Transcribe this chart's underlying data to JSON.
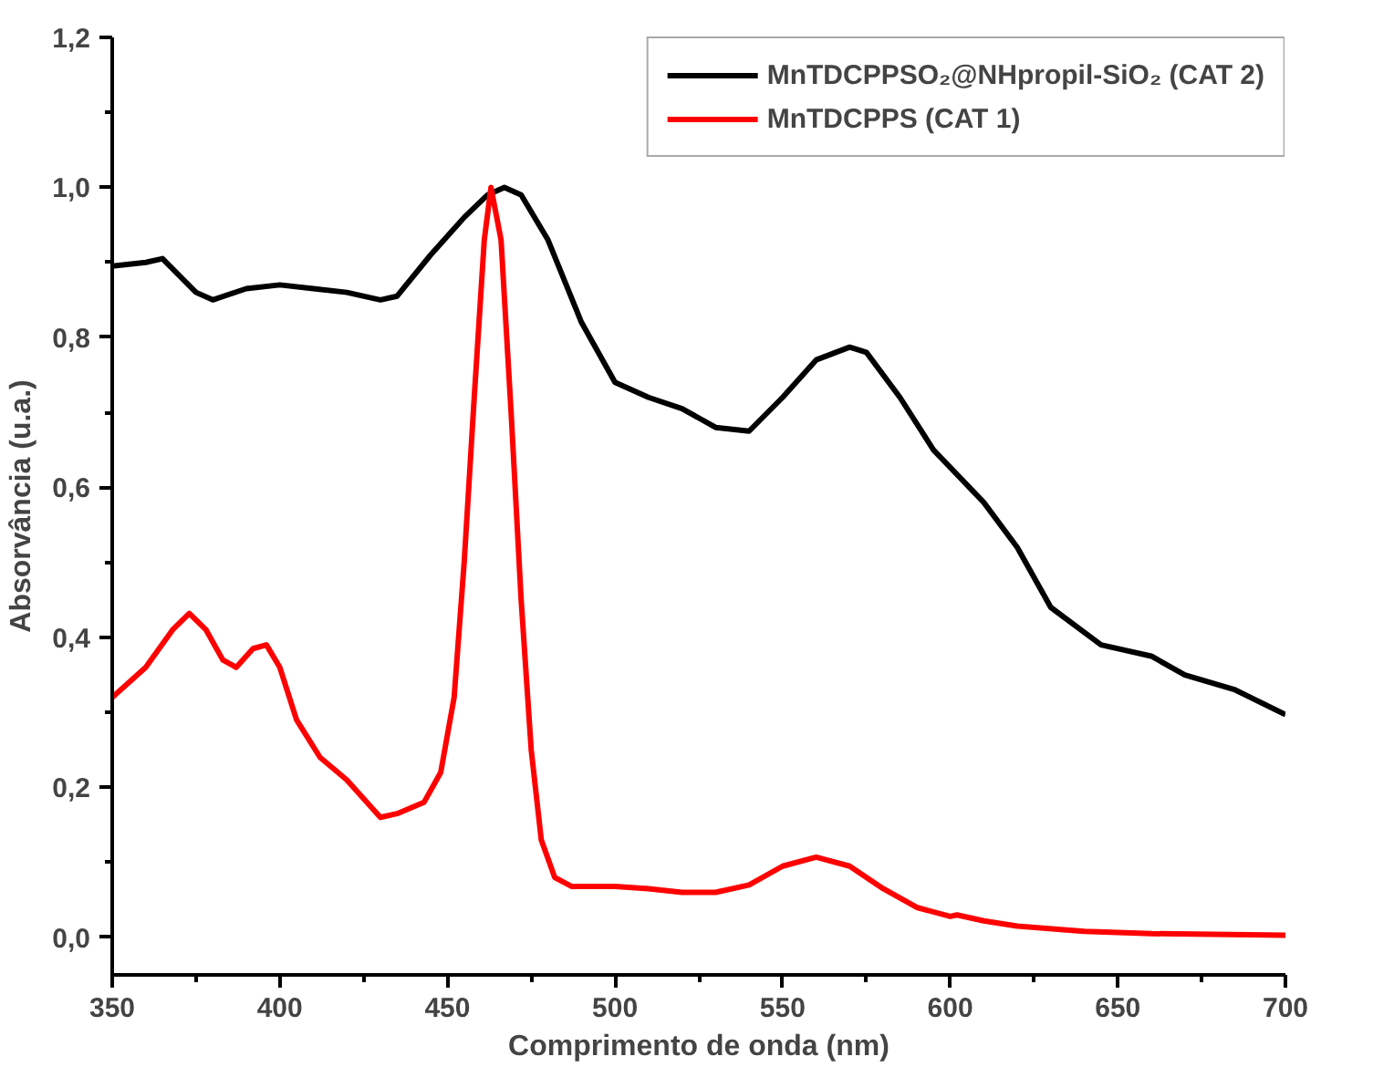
{
  "chart_data": {
    "type": "line",
    "xlabel": "Comprimento de onda (nm)",
    "ylabel": "Absorvância (u.a.)",
    "xlim": [
      350,
      700
    ],
    "ylim": [
      -0.05,
      1.2
    ],
    "xticks": [
      350,
      400,
      450,
      500,
      550,
      600,
      650,
      700
    ],
    "yticks": [
      {
        "value": 0,
        "label": "0,0"
      },
      {
        "value": 0.2,
        "label": "0,2"
      },
      {
        "value": 0.4,
        "label": "0,4"
      },
      {
        "value": 0.6,
        "label": "0,6"
      },
      {
        "value": 0.8,
        "label": "0,8"
      },
      {
        "value": 1.0,
        "label": "1,0"
      },
      {
        "value": 1.2,
        "label": "1,2"
      }
    ],
    "grid": false,
    "legend": "top right",
    "line_style": "solid",
    "marker": "none",
    "series": [
      {
        "name": "MnTDCPPSO₂@NHpropil-SiO₂ (CAT 2)",
        "color": "#000000",
        "x": [
          350,
          360,
          365,
          375,
          380,
          390,
          400,
          410,
          420,
          430,
          435,
          445,
          455,
          462,
          467,
          472,
          480,
          490,
          500,
          510,
          520,
          530,
          540,
          550,
          560,
          570,
          575,
          585,
          595,
          610,
          620,
          630,
          645,
          660,
          670,
          685,
          700
        ],
        "values": [
          0.895,
          0.9,
          0.905,
          0.86,
          0.85,
          0.865,
          0.87,
          0.865,
          0.86,
          0.85,
          0.855,
          0.91,
          0.96,
          0.99,
          1.0,
          0.99,
          0.93,
          0.82,
          0.74,
          0.72,
          0.705,
          0.68,
          0.675,
          0.72,
          0.77,
          0.787,
          0.78,
          0.72,
          0.65,
          0.58,
          0.52,
          0.44,
          0.39,
          0.375,
          0.35,
          0.33,
          0.297
        ]
      },
      {
        "name": "MnTDCPPS (CAT 1)",
        "color": "#ff0000",
        "x": [
          350,
          360,
          368,
          373,
          378,
          383,
          387,
          392,
          396,
          400,
          405,
          412,
          420,
          425,
          430,
          435,
          443,
          448,
          452,
          455,
          458,
          461,
          463,
          466,
          469,
          472,
          475,
          478,
          482,
          487,
          500,
          510,
          520,
          530,
          540,
          550,
          560,
          570,
          580,
          590,
          600,
          602,
          610,
          620,
          640,
          660,
          700
        ],
        "values": [
          0.32,
          0.36,
          0.41,
          0.432,
          0.41,
          0.37,
          0.36,
          0.385,
          0.39,
          0.36,
          0.29,
          0.24,
          0.21,
          0.185,
          0.16,
          0.165,
          0.18,
          0.22,
          0.32,
          0.5,
          0.72,
          0.93,
          1.0,
          0.93,
          0.7,
          0.45,
          0.25,
          0.13,
          0.08,
          0.068,
          0.068,
          0.065,
          0.06,
          0.06,
          0.07,
          0.095,
          0.107,
          0.095,
          0.065,
          0.04,
          0.028,
          0.03,
          0.022,
          0.015,
          0.008,
          0.005,
          0.003
        ]
      }
    ]
  }
}
